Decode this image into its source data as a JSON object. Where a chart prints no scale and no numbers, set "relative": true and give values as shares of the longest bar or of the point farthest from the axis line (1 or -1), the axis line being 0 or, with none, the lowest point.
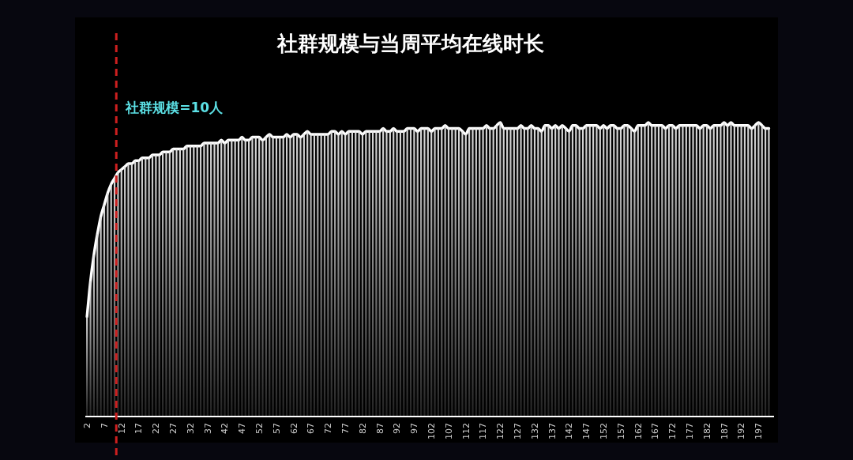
{
  "chart_data": {
    "type": "bar",
    "title": "社群规模与当周平均在线时长",
    "relative": true,
    "x": [
      2,
      3,
      4,
      5,
      6,
      7,
      8,
      9,
      10,
      11,
      12,
      13,
      14,
      15,
      16,
      17,
      18,
      19,
      20,
      21,
      22,
      23,
      24,
      25,
      26,
      27,
      28,
      29,
      30,
      31,
      32,
      33,
      34,
      35,
      36,
      37,
      38,
      39,
      40,
      41,
      42,
      43,
      44,
      45,
      46,
      47,
      48,
      49,
      50,
      51,
      52,
      53,
      54,
      55,
      56,
      57,
      58,
      59,
      60,
      61,
      62,
      63,
      64,
      65,
      66,
      67,
      68,
      69,
      70,
      71,
      72,
      73,
      74,
      75,
      76,
      77,
      78,
      79,
      80,
      81,
      82,
      83,
      84,
      85,
      86,
      87,
      88,
      89,
      90,
      91,
      92,
      93,
      94,
      95,
      96,
      97,
      98,
      99,
      100,
      101,
      102,
      103,
      104,
      105,
      106,
      107,
      108,
      109,
      110,
      111,
      112,
      113,
      114,
      115,
      116,
      117,
      118,
      119,
      120,
      121,
      122,
      123,
      124,
      125,
      126,
      127,
      128,
      129,
      130,
      131,
      132,
      133,
      134,
      135,
      136,
      137,
      138,
      139,
      140,
      141,
      142,
      143,
      144,
      145,
      146,
      147,
      148,
      149,
      150,
      151,
      152,
      153,
      154,
      155,
      156,
      157,
      158,
      159,
      160,
      161,
      162,
      163,
      164,
      165,
      166,
      167,
      168,
      169,
      170,
      171,
      172,
      173,
      174,
      175,
      176,
      177,
      178,
      179,
      180,
      181,
      182,
      183,
      184,
      185,
      186,
      187,
      188,
      189,
      190,
      191,
      192,
      193,
      194,
      195,
      196,
      197,
      198,
      199,
      200
    ],
    "xlim": [
      1.5,
      201.5
    ],
    "xticks": [
      2,
      7,
      12,
      17,
      22,
      27,
      32,
      37,
      42,
      47,
      52,
      57,
      62,
      67,
      72,
      77,
      82,
      87,
      92,
      97,
      102,
      107,
      112,
      117,
      122,
      127,
      132,
      137,
      142,
      147,
      152,
      157,
      162,
      167,
      172,
      177,
      182,
      187,
      192,
      197
    ],
    "series": [
      {
        "color": "#e6e6e6",
        "values": [
          0.34,
          0.46,
          0.55,
          0.62,
          0.68,
          0.72,
          0.76,
          0.79,
          0.81,
          0.83,
          0.84,
          0.85,
          0.86,
          0.86,
          0.87,
          0.87,
          0.88,
          0.88,
          0.88,
          0.89,
          0.89,
          0.89,
          0.9,
          0.9,
          0.9,
          0.91,
          0.91,
          0.91,
          0.91,
          0.92,
          0.92,
          0.92,
          0.92,
          0.92,
          0.93,
          0.93,
          0.93,
          0.93,
          0.93,
          0.94,
          0.93,
          0.94,
          0.94,
          0.94,
          0.94,
          0.95,
          0.94,
          0.94,
          0.95,
          0.95,
          0.95,
          0.94,
          0.95,
          0.96,
          0.95,
          0.95,
          0.95,
          0.95,
          0.96,
          0.95,
          0.96,
          0.96,
          0.95,
          0.96,
          0.97,
          0.96,
          0.96,
          0.96,
          0.96,
          0.96,
          0.96,
          0.97,
          0.97,
          0.96,
          0.97,
          0.96,
          0.97,
          0.97,
          0.97,
          0.97,
          0.96,
          0.97,
          0.97,
          0.97,
          0.97,
          0.97,
          0.98,
          0.97,
          0.97,
          0.98,
          0.97,
          0.97,
          0.97,
          0.98,
          0.98,
          0.98,
          0.97,
          0.98,
          0.98,
          0.98,
          0.97,
          0.98,
          0.98,
          0.98,
          0.99,
          0.98,
          0.98,
          0.98,
          0.98,
          0.97,
          0.96,
          0.98,
          0.98,
          0.98,
          0.98,
          0.98,
          0.99,
          0.98,
          0.98,
          0.99,
          1.0,
          0.98,
          0.98,
          0.98,
          0.98,
          0.98,
          0.99,
          0.98,
          0.98,
          0.99,
          0.98,
          0.98,
          0.97,
          0.99,
          0.99,
          0.98,
          0.99,
          0.98,
          0.99,
          0.98,
          0.97,
          0.99,
          0.99,
          0.98,
          0.98,
          0.99,
          0.99,
          0.99,
          0.99,
          0.98,
          0.99,
          0.98,
          0.99,
          0.99,
          0.98,
          0.98,
          0.99,
          0.99,
          0.98,
          0.97,
          0.99,
          0.99,
          0.99,
          1.0,
          0.99,
          0.99,
          0.99,
          0.99,
          0.98,
          0.99,
          0.99,
          0.98,
          0.99,
          0.99,
          0.99,
          0.99,
          0.99,
          0.99,
          0.98,
          0.99,
          0.99,
          0.98,
          0.99,
          0.99,
          0.99,
          1.0,
          0.99,
          1.0,
          0.99,
          0.99,
          0.99,
          0.99,
          0.99,
          0.98,
          0.99,
          1.0,
          0.99,
          0.98,
          0.98
        ]
      },
      {
        "type": "line",
        "color": "#ffffff",
        "values": [
          0.34,
          0.46,
          0.55,
          0.62,
          0.68,
          0.72,
          0.76,
          0.79,
          0.81,
          0.83,
          0.84,
          0.85,
          0.86,
          0.86,
          0.87,
          0.87,
          0.88,
          0.88,
          0.88,
          0.89,
          0.89,
          0.89,
          0.9,
          0.9,
          0.9,
          0.91,
          0.91,
          0.91,
          0.91,
          0.92,
          0.92,
          0.92,
          0.92,
          0.92,
          0.93,
          0.93,
          0.93,
          0.93,
          0.93,
          0.94,
          0.93,
          0.94,
          0.94,
          0.94,
          0.94,
          0.95,
          0.94,
          0.94,
          0.95,
          0.95,
          0.95,
          0.94,
          0.95,
          0.96,
          0.95,
          0.95,
          0.95,
          0.95,
          0.96,
          0.95,
          0.96,
          0.96,
          0.95,
          0.96,
          0.97,
          0.96,
          0.96,
          0.96,
          0.96,
          0.96,
          0.96,
          0.97,
          0.97,
          0.96,
          0.97,
          0.96,
          0.97,
          0.97,
          0.97,
          0.97,
          0.96,
          0.97,
          0.97,
          0.97,
          0.97,
          0.97,
          0.98,
          0.97,
          0.97,
          0.98,
          0.97,
          0.97,
          0.97,
          0.98,
          0.98,
          0.98,
          0.97,
          0.98,
          0.98,
          0.98,
          0.97,
          0.98,
          0.98,
          0.98,
          0.99,
          0.98,
          0.98,
          0.98,
          0.98,
          0.97,
          0.96,
          0.98,
          0.98,
          0.98,
          0.98,
          0.98,
          0.99,
          0.98,
          0.98,
          0.99,
          1.0,
          0.98,
          0.98,
          0.98,
          0.98,
          0.98,
          0.99,
          0.98,
          0.98,
          0.99,
          0.98,
          0.98,
          0.97,
          0.99,
          0.99,
          0.98,
          0.99,
          0.98,
          0.99,
          0.98,
          0.97,
          0.99,
          0.99,
          0.98,
          0.98,
          0.99,
          0.99,
          0.99,
          0.99,
          0.98,
          0.99,
          0.98,
          0.99,
          0.99,
          0.98,
          0.98,
          0.99,
          0.99,
          0.98,
          0.97,
          0.99,
          0.99,
          0.99,
          1.0,
          0.99,
          0.99,
          0.99,
          0.99,
          0.98,
          0.99,
          0.99,
          0.98,
          0.99,
          0.99,
          0.99,
          0.99,
          0.99,
          0.99,
          0.98,
          0.99,
          0.99,
          0.98,
          0.99,
          0.99,
          0.99,
          1.0,
          0.99,
          1.0,
          0.99,
          0.99,
          0.99,
          0.99,
          0.99,
          0.98,
          0.99,
          1.0,
          0.99,
          0.98,
          0.98
        ]
      }
    ],
    "ref_lines": [
      {
        "axis": "x",
        "value": 10.5,
        "label": "社群规模=10人",
        "color": "#cc1f1f",
        "line_style": "dashed"
      }
    ]
  }
}
